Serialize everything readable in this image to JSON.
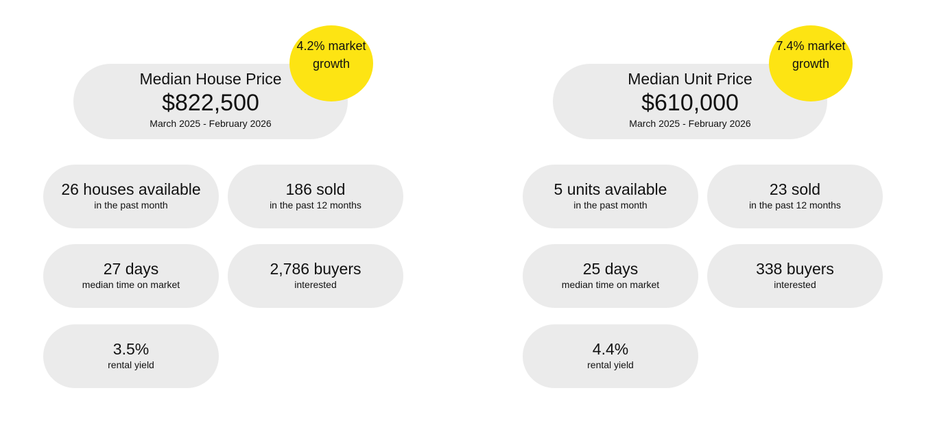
{
  "colors": {
    "card": "#ebebeb",
    "badge": "#fde413"
  },
  "panels": [
    {
      "title": "Median House Price",
      "price": "$822,500",
      "period": "March 2025 - February 2026",
      "growth": "4.2% market growth",
      "stats": [
        {
          "value": "26 houses available",
          "label": "in the past month"
        },
        {
          "value": "186 sold",
          "label": "in the past 12 months"
        },
        {
          "value": "27 days",
          "label": "median time on market"
        },
        {
          "value": "2,786 buyers",
          "label": "interested"
        },
        {
          "value": "3.5%",
          "label": "rental yield"
        }
      ]
    },
    {
      "title": "Median Unit Price",
      "price": "$610,000",
      "period": "March 2025 - February 2026",
      "growth": "7.4% market growth",
      "stats": [
        {
          "value": "5 units available",
          "label": "in the past month"
        },
        {
          "value": "23 sold",
          "label": "in the past 12 months"
        },
        {
          "value": "25 days",
          "label": "median time on market"
        },
        {
          "value": "338 buyers",
          "label": "interested"
        },
        {
          "value": "4.4%",
          "label": "rental yield"
        }
      ]
    }
  ]
}
